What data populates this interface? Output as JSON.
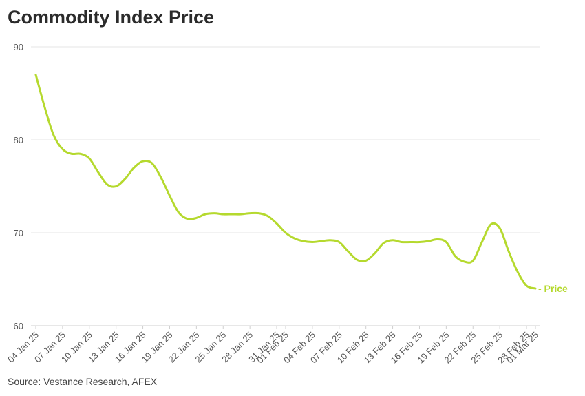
{
  "colors": {
    "series": "#b5d92e",
    "grid": "#e6e6e6",
    "text": "#555555"
  },
  "chart_data": {
    "type": "line",
    "title": "Commodity Index Price",
    "source": "Source: Vestance Research, AFEX",
    "xlabel": "",
    "ylabel": "",
    "ylim": [
      60,
      90
    ],
    "yticks": [
      60,
      70,
      80,
      90
    ],
    "grid": true,
    "x": [
      "04 Jan 25",
      "05 Jan 25",
      "06 Jan 25",
      "07 Jan 25",
      "08 Jan 25",
      "09 Jan 25",
      "10 Jan 25",
      "11 Jan 25",
      "12 Jan 25",
      "13 Jan 25",
      "14 Jan 25",
      "15 Jan 25",
      "16 Jan 25",
      "17 Jan 25",
      "18 Jan 25",
      "19 Jan 25",
      "20 Jan 25",
      "21 Jan 25",
      "22 Jan 25",
      "23 Jan 25",
      "24 Jan 25",
      "25 Jan 25",
      "26 Jan 25",
      "27 Jan 25",
      "28 Jan 25",
      "29 Jan 25",
      "30 Jan 25",
      "31 Jan 25",
      "01 Feb 25",
      "02 Feb 25",
      "03 Feb 25",
      "04 Feb 25",
      "05 Feb 25",
      "06 Feb 25",
      "07 Feb 25",
      "08 Feb 25",
      "09 Feb 25",
      "10 Feb 25",
      "11 Feb 25",
      "12 Feb 25",
      "13 Feb 25",
      "14 Feb 25",
      "15 Feb 25",
      "16 Feb 25",
      "17 Feb 25",
      "18 Feb 25",
      "19 Feb 25",
      "20 Feb 25",
      "21 Feb 25",
      "22 Feb 25",
      "23 Feb 25",
      "24 Feb 25",
      "25 Feb 25",
      "26 Feb 25",
      "27 Feb 25",
      "28 Feb 25",
      "01 Mar 25"
    ],
    "xticks": [
      "04 Jan 25",
      "07 Jan 25",
      "10 Jan 25",
      "13 Jan 25",
      "16 Jan 25",
      "19 Jan 25",
      "22 Jan 25",
      "25 Jan 25",
      "28 Jan 25",
      "31 Jan 25",
      "01 Feb 25",
      "04 Feb 25",
      "07 Feb 25",
      "10 Feb 25",
      "13 Feb 25",
      "16 Feb 25",
      "19 Feb 25",
      "22 Feb 25",
      "25 Feb 25",
      "28 Feb 25",
      "01 Mar 25"
    ],
    "series": [
      {
        "name": "Price",
        "values": [
          87,
          83.5,
          80.5,
          79,
          78.5,
          78.5,
          78,
          76.5,
          75.2,
          75,
          75.8,
          77,
          77.7,
          77.5,
          76,
          74,
          72.2,
          71.5,
          71.6,
          72,
          72.1,
          72,
          72,
          72,
          72.1,
          72.1,
          71.8,
          71,
          70,
          69.4,
          69.1,
          69,
          69.1,
          69.2,
          69,
          68,
          67.1,
          67,
          67.8,
          68.9,
          69.2,
          69,
          69,
          69,
          69.1,
          69.3,
          69,
          67.5,
          66.9,
          67,
          69,
          70.9,
          70.5,
          68,
          65.8,
          64.3,
          64
        ]
      }
    ]
  }
}
